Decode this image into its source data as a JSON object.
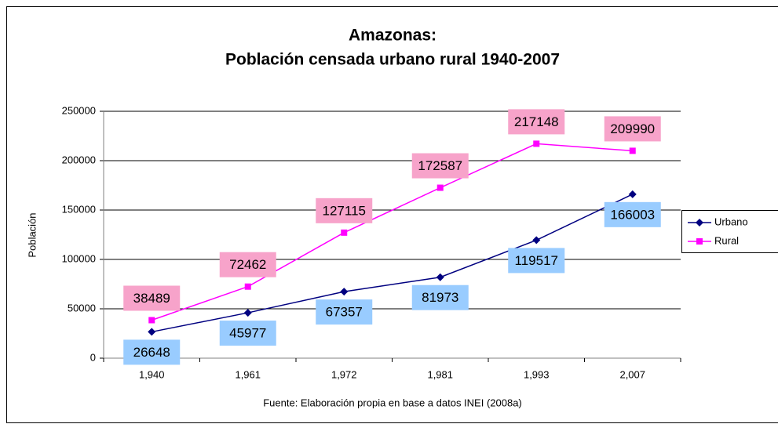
{
  "chart_data": {
    "type": "line",
    "title": [
      "Amazonas:",
      "Población censada urbano rural 1940-2007"
    ],
    "y_label": "Población",
    "source": "Fuente: Elaboración propia en base a datos INEI (2008a)",
    "categories": [
      "1,940",
      "1,961",
      "1,972",
      "1,981",
      "1,993",
      "2,007"
    ],
    "series": [
      {
        "name": "Urbano",
        "color": "#000080",
        "label_color": "#99ccff",
        "values": [
          26648,
          45977,
          67357,
          81973,
          119517,
          166003
        ]
      },
      {
        "name": "Rural",
        "color": "#ff00ff",
        "label_color": "#f7a3ca",
        "values": [
          38489,
          72462,
          127115,
          172587,
          217148,
          209990
        ]
      }
    ],
    "ylim": [
      0,
      250000
    ],
    "yticks": [
      0,
      50000,
      100000,
      150000,
      200000,
      250000
    ],
    "grid": true,
    "legend": "right"
  }
}
